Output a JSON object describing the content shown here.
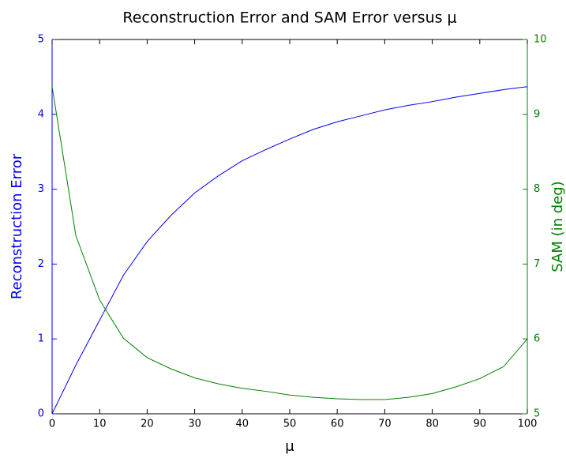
{
  "chart_data": {
    "type": "line",
    "title": "Reconstruction Error and SAM Error versus μ",
    "xlabel": "μ",
    "ylabel": "Reconstruction Error",
    "y2label": "SAM  (in deg)",
    "x": [
      0,
      5,
      10,
      15,
      20,
      25,
      30,
      35,
      40,
      45,
      50,
      55,
      60,
      65,
      70,
      75,
      80,
      85,
      90,
      95,
      100
    ],
    "series": [
      {
        "name": "Reconstruction Error",
        "color": "#0000ff",
        "axis": "y",
        "values": [
          0,
          0.65,
          1.25,
          1.85,
          2.3,
          2.65,
          2.95,
          3.18,
          3.38,
          3.53,
          3.67,
          3.8,
          3.9,
          3.98,
          4.06,
          4.12,
          4.17,
          4.23,
          4.28,
          4.33,
          4.37
        ]
      },
      {
        "name": "SAM",
        "color": "#008000",
        "axis": "y2",
        "values": [
          9.37,
          7.38,
          6.52,
          6.01,
          5.75,
          5.6,
          5.48,
          5.4,
          5.34,
          5.3,
          5.25,
          5.22,
          5.2,
          5.19,
          5.19,
          5.22,
          5.27,
          5.36,
          5.47,
          5.63,
          6.0
        ]
      }
    ],
    "xlim": [
      0,
      100
    ],
    "xticks": [
      0,
      10,
      20,
      30,
      40,
      50,
      60,
      70,
      80,
      90,
      100
    ],
    "ylim": [
      0,
      5
    ],
    "yticks": [
      0,
      1,
      2,
      3,
      4,
      5
    ],
    "y2lim": [
      5,
      10
    ],
    "y2ticks": [
      5,
      6,
      7,
      8,
      9,
      10
    ]
  }
}
